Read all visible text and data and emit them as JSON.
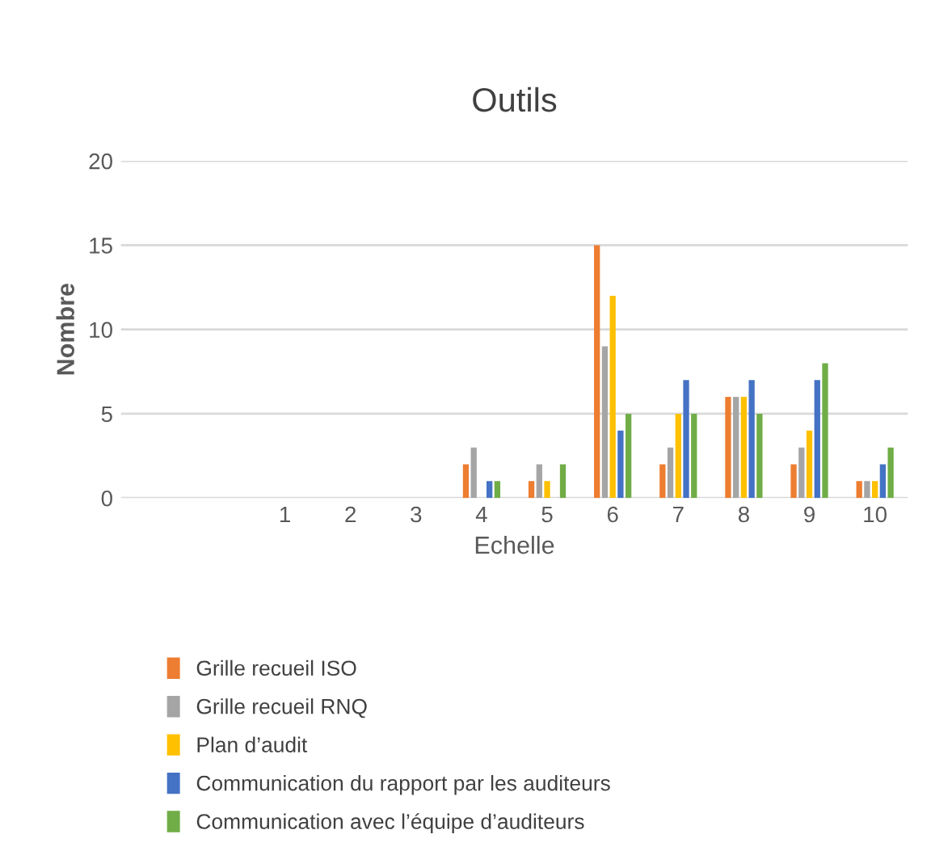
{
  "chart_data": {
    "type": "bar",
    "title": "Outils",
    "xlabel": "Echelle",
    "ylabel": "Nombre",
    "categories": [
      null,
      null,
      "1",
      "2",
      "3",
      "4",
      "5",
      "6",
      "7",
      "8",
      "9",
      "10"
    ],
    "series": [
      {
        "name": "Grille recueil ISO",
        "color": "#ed7d31",
        "values": [
          null,
          null,
          0,
          0,
          0,
          2,
          1,
          15,
          2,
          6,
          2,
          1
        ]
      },
      {
        "name": "Grille recueil RNQ",
        "color": "#a5a5a5",
        "values": [
          null,
          null,
          0,
          0,
          0,
          3,
          2,
          9,
          3,
          6,
          3,
          1
        ]
      },
      {
        "name": "Plan d’audit",
        "color": "#ffc000",
        "values": [
          null,
          null,
          0,
          0,
          0,
          0,
          1,
          12,
          5,
          6,
          4,
          1
        ]
      },
      {
        "name": "Communication du rapport par les auditeurs",
        "color": "#4472c4",
        "values": [
          null,
          null,
          0,
          0,
          0,
          1,
          0,
          4,
          7,
          7,
          7,
          2
        ]
      },
      {
        "name": "Communication avec l’équipe d’auditeurs",
        "color": "#70ad47",
        "values": [
          null,
          null,
          0,
          0,
          0,
          1,
          2,
          5,
          5,
          5,
          8,
          3
        ]
      }
    ],
    "ylim": [
      0,
      20
    ],
    "yticks": [
      0,
      5,
      10,
      15,
      20
    ],
    "grid": "y",
    "legend": "bottom"
  }
}
